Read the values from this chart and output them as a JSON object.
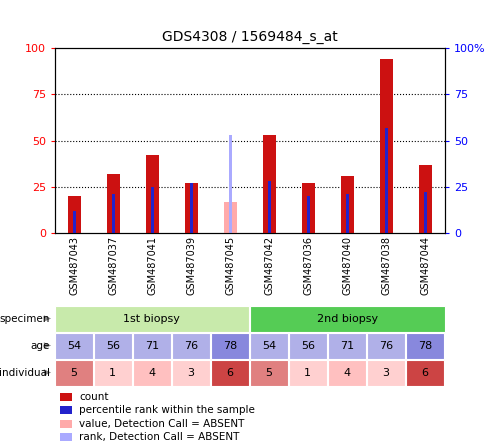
{
  "title": "GDS4308 / 1569484_s_at",
  "samples": [
    "GSM487043",
    "GSM487037",
    "GSM487041",
    "GSM487039",
    "GSM487045",
    "GSM487042",
    "GSM487036",
    "GSM487040",
    "GSM487038",
    "GSM487044"
  ],
  "count_values": [
    20,
    32,
    42,
    27,
    null,
    53,
    27,
    31,
    94,
    37
  ],
  "percentile_values": [
    12,
    21,
    25,
    27,
    null,
    28,
    20,
    21,
    57,
    22
  ],
  "absent_count": [
    null,
    null,
    null,
    null,
    17,
    null,
    null,
    null,
    null,
    null
  ],
  "absent_percentile": [
    null,
    null,
    null,
    null,
    53,
    null,
    null,
    null,
    null,
    null
  ],
  "specimen_groups": [
    {
      "label": "1st biopsy",
      "start": 0,
      "end": 5,
      "color": "#c8eaab"
    },
    {
      "label": "2nd biopsy",
      "start": 5,
      "end": 10,
      "color": "#55cc55"
    }
  ],
  "age_values": [
    54,
    56,
    71,
    76,
    78,
    54,
    56,
    71,
    76,
    78
  ],
  "individual_values": [
    5,
    1,
    4,
    3,
    6,
    5,
    1,
    4,
    3,
    6
  ],
  "age_colors": [
    "#b0b0e8",
    "#b0b0e8",
    "#b0b0e8",
    "#b0b0e8",
    "#8888dd",
    "#b0b0e8",
    "#b0b0e8",
    "#b0b0e8",
    "#b0b0e8",
    "#8888dd"
  ],
  "individual_colors": [
    "#e08080",
    "#ffd0d0",
    "#ffc0c0",
    "#ffd0d0",
    "#cc4444",
    "#e08080",
    "#ffd0d0",
    "#ffc0c0",
    "#ffd0d0",
    "#cc4444"
  ],
  "bar_color": "#cc1111",
  "percentile_color": "#2222cc",
  "absent_bar_color": "#ffaaaa",
  "absent_pct_color": "#aaaaff",
  "ylim": [
    0,
    100
  ],
  "yticks": [
    0,
    25,
    50,
    75,
    100
  ],
  "legend_items": [
    {
      "color": "#cc1111",
      "label": "count"
    },
    {
      "color": "#2222cc",
      "label": "percentile rank within the sample"
    },
    {
      "color": "#ffaaaa",
      "label": "value, Detection Call = ABSENT"
    },
    {
      "color": "#aaaaff",
      "label": "rank, Detection Call = ABSENT"
    }
  ]
}
